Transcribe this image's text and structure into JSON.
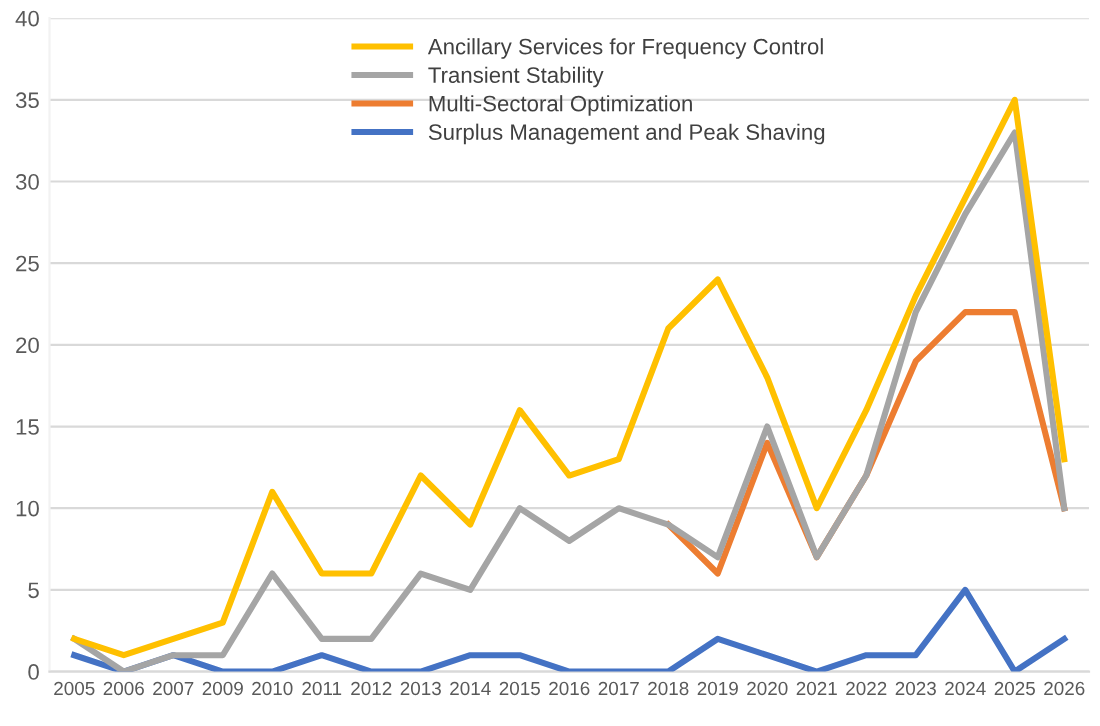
{
  "chart_data": {
    "type": "line",
    "categories": [
      "2005",
      "2006",
      "2007",
      "2009",
      "2010",
      "2011",
      "2012",
      "2013",
      "2014",
      "2015",
      "2016",
      "2017",
      "2018",
      "2019",
      "2020",
      "2021",
      "2022",
      "2023",
      "2024",
      "2025",
      "2026"
    ],
    "series": [
      {
        "name": "Ancillary Services for Frequency Control",
        "color": "#ffc000",
        "values": [
          2,
          1,
          2,
          3,
          11,
          6,
          6,
          12,
          9,
          16,
          12,
          13,
          21,
          24,
          18,
          10,
          16,
          23,
          29,
          35,
          13
        ]
      },
      {
        "name": "Transient Stability",
        "color": "#a5a5a5",
        "values": [
          2,
          0,
          1,
          1,
          6,
          2,
          2,
          6,
          5,
          10,
          8,
          10,
          9,
          7,
          15,
          7,
          12,
          22,
          28,
          33,
          10
        ]
      },
      {
        "name": "Multi-Sectoral Optimization",
        "color": "#ed7d31",
        "values": [
          null,
          null,
          null,
          null,
          null,
          null,
          null,
          null,
          null,
          null,
          null,
          null,
          9,
          6,
          14,
          7,
          12,
          19,
          22,
          22,
          10
        ]
      },
      {
        "name": "Surplus Management and Peak Shaving",
        "color": "#4472c4",
        "values": [
          1,
          0,
          1,
          0,
          0,
          1,
          0,
          0,
          1,
          1,
          0,
          0,
          0,
          2,
          1,
          0,
          1,
          1,
          5,
          0,
          2
        ]
      }
    ],
    "ylim": [
      0,
      40
    ],
    "yticks": [
      0,
      5,
      10,
      15,
      20,
      25,
      30,
      35,
      40
    ],
    "grid": "y",
    "legend": "top",
    "marker": "none",
    "line_style": "solid"
  }
}
